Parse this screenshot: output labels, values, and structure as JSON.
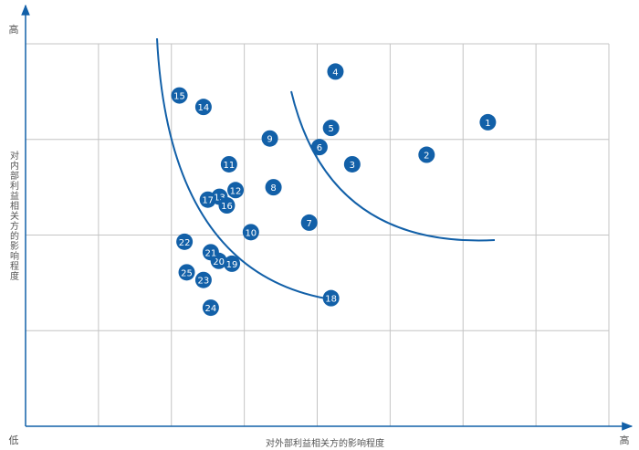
{
  "chart_data": {
    "type": "scatter",
    "y_high": "高",
    "x_low": "低",
    "x_high": "高",
    "xlabel": "对外部利益相关方的影响程度",
    "ylabel": "对内部利益相关方的影响程度",
    "xlim": [
      0,
      8
    ],
    "ylim": [
      0,
      4
    ],
    "xticks": [
      0,
      1,
      2,
      3,
      4,
      5,
      6,
      7,
      8
    ],
    "yticks": [
      0,
      1,
      2,
      3,
      4
    ],
    "grid": true,
    "series": [
      {
        "color": "#1260a8",
        "labels": [
          "1",
          "2",
          "3",
          "4",
          "5",
          "6",
          "7",
          "8",
          "9",
          "10",
          "11",
          "12",
          "13",
          "14",
          "15",
          "16",
          "17",
          "18",
          "19",
          "20",
          "21",
          "22",
          "23",
          "24",
          "25"
        ],
        "x": [
          6.34,
          5.5,
          4.48,
          4.25,
          4.19,
          4.03,
          3.89,
          3.4,
          3.35,
          3.09,
          2.79,
          2.88,
          2.66,
          2.44,
          2.11,
          2.76,
          2.5,
          4.19,
          2.83,
          2.65,
          2.54,
          2.18,
          2.44,
          2.54,
          2.21
        ],
        "values": [
          3.18,
          2.84,
          2.74,
          3.71,
          3.12,
          2.92,
          2.13,
          2.5,
          3.01,
          2.03,
          2.74,
          2.47,
          2.4,
          3.34,
          3.46,
          2.31,
          2.37,
          1.34,
          1.7,
          1.73,
          1.82,
          1.93,
          1.53,
          1.24,
          1.61
        ]
      }
    ]
  }
}
